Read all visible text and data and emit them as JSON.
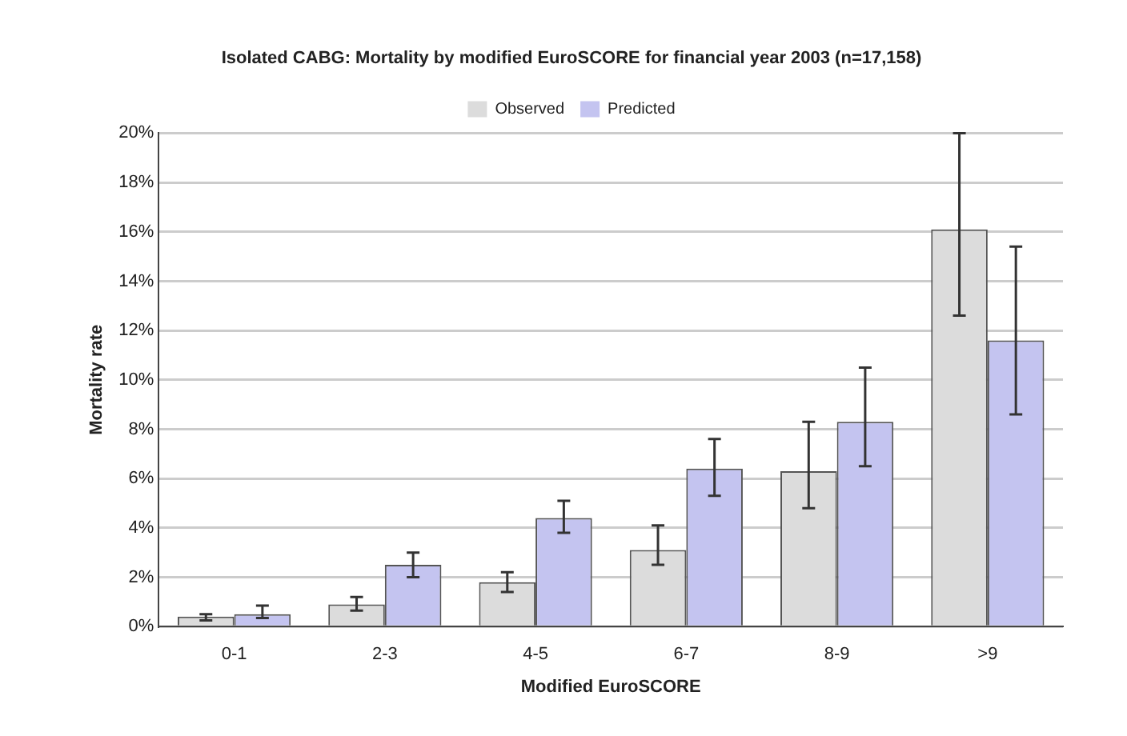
{
  "chart_data": {
    "type": "bar",
    "title": "Isolated CABG: Mortality by modified EuroSCORE for financial year 2003 (n=17,158)",
    "xlabel": "Modified EuroSCORE",
    "ylabel": "Mortality rate",
    "categories": [
      "0-1",
      "2-3",
      "4-5",
      "6-7",
      "8-9",
      ">9"
    ],
    "series": [
      {
        "name": "Observed",
        "color": "#dcdcdc",
        "values": [
          0.4,
          0.9,
          1.8,
          3.1,
          6.3,
          16.1
        ],
        "errors": [
          [
            0.25,
            0.5
          ],
          [
            0.65,
            1.2
          ],
          [
            1.4,
            2.2
          ],
          [
            2.5,
            4.1
          ],
          [
            4.8,
            8.3
          ],
          [
            12.6,
            20
          ]
        ]
      },
      {
        "name": "Predicted",
        "color": "#c4c4f0",
        "values": [
          0.5,
          2.5,
          4.4,
          6.4,
          8.3,
          11.6
        ],
        "errors": [
          [
            0.35,
            0.85
          ],
          [
            2.0,
            3.0
          ],
          [
            3.8,
            5.1
          ],
          [
            5.3,
            7.6
          ],
          [
            6.5,
            10.5
          ],
          [
            8.6,
            15.4
          ]
        ]
      }
    ],
    "ylim": [
      0,
      20
    ],
    "yticks": [
      {
        "value": 0,
        "label": "0%"
      },
      {
        "value": 2,
        "label": "2%"
      },
      {
        "value": 4,
        "label": "4%"
      },
      {
        "value": 6,
        "label": "6%"
      },
      {
        "value": 8,
        "label": "8%"
      },
      {
        "value": 10,
        "label": "10%"
      },
      {
        "value": 12,
        "label": "12%"
      },
      {
        "value": 14,
        "label": "14%"
      },
      {
        "value": 16,
        "label": "16%"
      },
      {
        "value": 18,
        "label": "18%"
      },
      {
        "value": 20,
        "label": "20%"
      }
    ],
    "grid": "y",
    "legend": "top"
  }
}
